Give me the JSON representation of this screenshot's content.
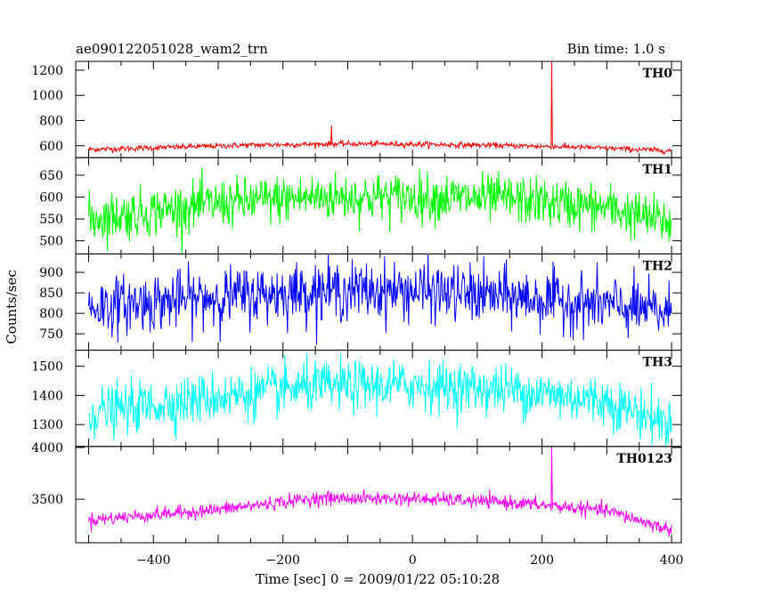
{
  "chart_data": {
    "type": "line",
    "title": "ae090122051028_wam2_trn",
    "subtitle": "Bin time: 1.0 s",
    "xlabel": "Time [sec] 0 = 2009/01/22 05:10:28",
    "ylabel": "Counts/sec",
    "xlim": [
      -520,
      415
    ],
    "x_ticks": [
      -400,
      -200,
      0,
      200,
      400
    ],
    "x_range_data": [
      -500,
      400
    ],
    "bin_time_s": 1.0,
    "panels": [
      {
        "name": "TH0",
        "color": "#ff0000",
        "ylim": [
          505,
          1270
        ],
        "yticks": [
          600,
          800,
          1000,
          1200
        ],
        "baseline": [
          [
            -500,
            570
          ],
          [
            -250,
            605
          ],
          [
            -100,
            615
          ],
          [
            0,
            612
          ],
          [
            100,
            605
          ],
          [
            250,
            590
          ],
          [
            400,
            560
          ]
        ],
        "noise": 22,
        "spikes": [
          [
            215,
            1270
          ],
          [
            -125,
            760
          ]
        ]
      },
      {
        "name": "TH1",
        "color": "#00ff00",
        "ylim": [
          470,
          690
        ],
        "yticks": [
          500,
          550,
          600,
          650
        ],
        "baseline": [
          [
            -500,
            550
          ],
          [
            -300,
            585
          ],
          [
            -150,
            600
          ],
          [
            0,
            600
          ],
          [
            150,
            595
          ],
          [
            300,
            575
          ],
          [
            400,
            540
          ]
        ],
        "noise": 55
      },
      {
        "name": "TH2",
        "color": "#0000ff",
        "ylim": [
          710,
          945
        ],
        "yticks": [
          750,
          800,
          850,
          900
        ],
        "baseline": [
          [
            -500,
            815
          ],
          [
            -300,
            840
          ],
          [
            -150,
            855
          ],
          [
            0,
            855
          ],
          [
            150,
            840
          ],
          [
            300,
            820
          ],
          [
            400,
            800
          ]
        ],
        "noise": 70
      },
      {
        "name": "TH3",
        "color": "#00ffff",
        "ylim": [
          1225,
          1555
        ],
        "yticks": [
          1300,
          1400,
          1500
        ],
        "baseline": [
          [
            -500,
            1340
          ],
          [
            -300,
            1395
          ],
          [
            -150,
            1430
          ],
          [
            0,
            1435
          ],
          [
            150,
            1420
          ],
          [
            300,
            1380
          ],
          [
            400,
            1300
          ]
        ],
        "noise": 85
      },
      {
        "name": "TH0123",
        "color": "#ff00ff",
        "ylim": [
          3080,
          4010
        ],
        "yticks": [
          3500,
          4000
        ],
        "baseline": [
          [
            -500,
            3300
          ],
          [
            -300,
            3400
          ],
          [
            -150,
            3510
          ],
          [
            0,
            3505
          ],
          [
            150,
            3470
          ],
          [
            300,
            3390
          ],
          [
            400,
            3200
          ]
        ],
        "noise": 65,
        "spikes": [
          [
            215,
            4010
          ]
        ]
      }
    ]
  }
}
